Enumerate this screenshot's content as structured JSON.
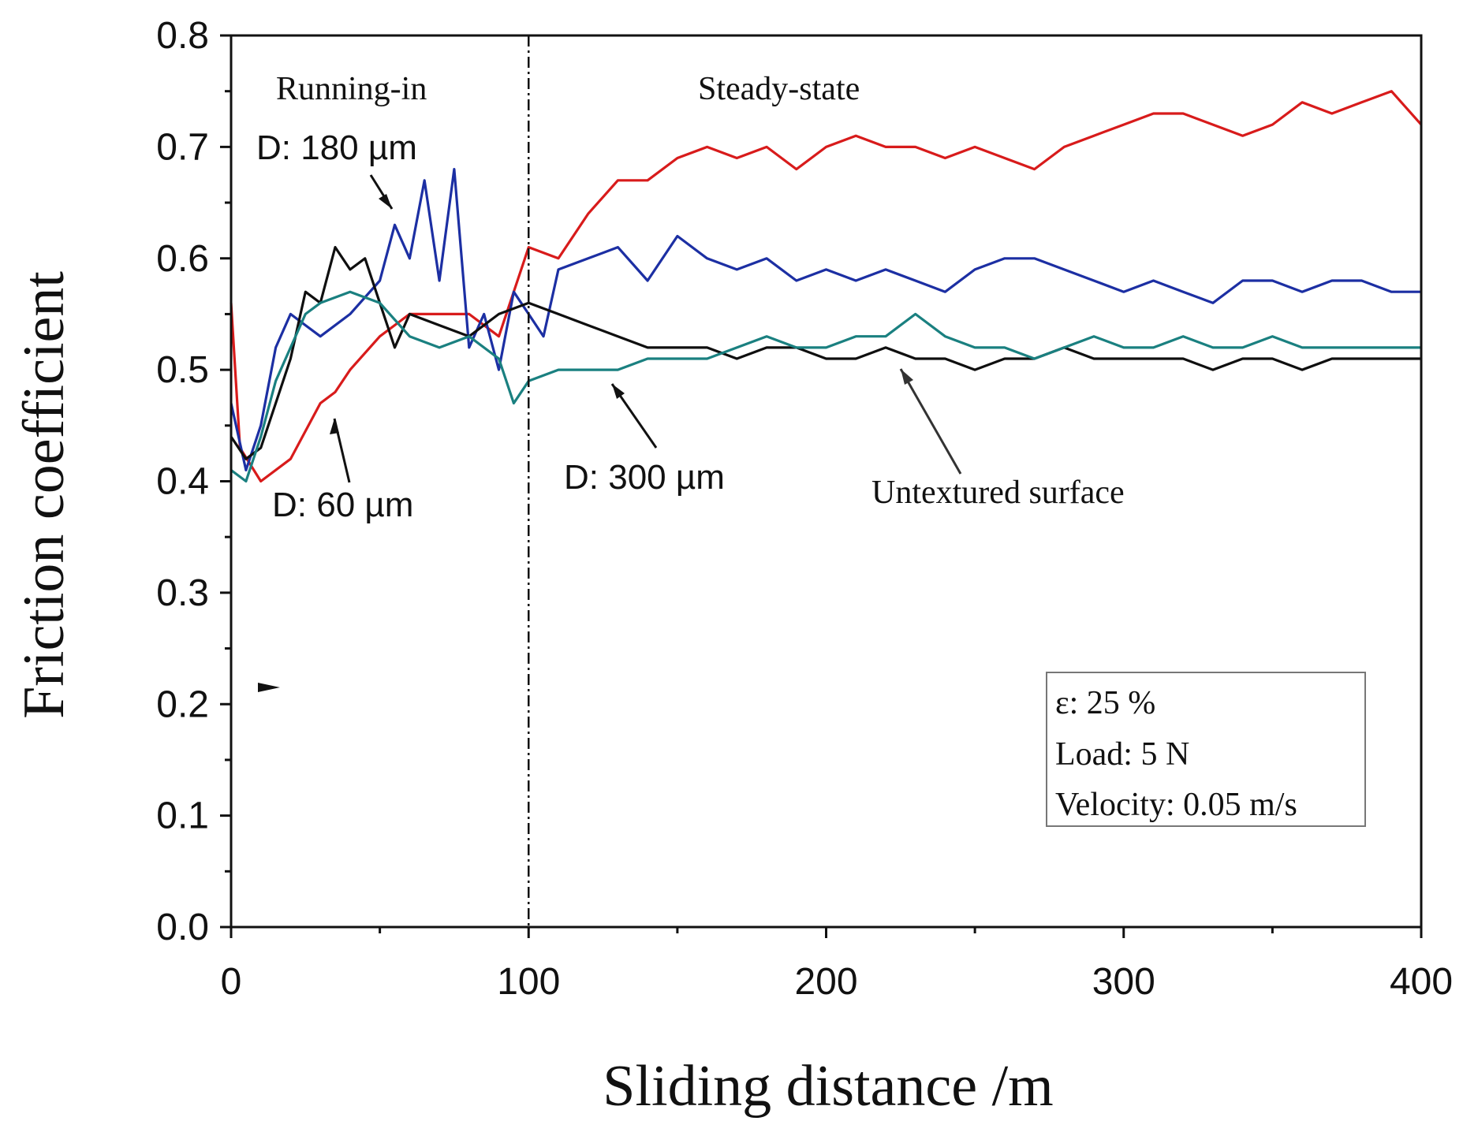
{
  "chart_data": {
    "type": "line",
    "xlabel": "Sliding distance /m",
    "ylabel": "Friction coefficient",
    "xlim": [
      0,
      400
    ],
    "ylim": [
      0,
      0.8
    ],
    "x_ticks": [
      "0",
      "100",
      "200",
      "300",
      "400"
    ],
    "y_ticks": [
      "0.0",
      "0.1",
      "0.2",
      "0.3",
      "0.4",
      "0.5",
      "0.6",
      "0.7",
      "0.8"
    ],
    "grid": false,
    "phase_divider_x": 100,
    "phase_labels": [
      "Running-in",
      "Steady-state"
    ],
    "series": [
      {
        "name": "D: 60 µm",
        "color": "#d81b1b",
        "x": [
          0,
          3,
          10,
          20,
          30,
          35,
          40,
          50,
          60,
          70,
          80,
          90,
          100,
          110,
          120,
          130,
          140,
          150,
          160,
          170,
          180,
          190,
          200,
          210,
          220,
          230,
          240,
          250,
          260,
          270,
          280,
          290,
          300,
          310,
          320,
          330,
          340,
          350,
          360,
          370,
          380,
          390,
          400
        ],
        "values": [
          0.56,
          0.43,
          0.4,
          0.42,
          0.47,
          0.48,
          0.5,
          0.53,
          0.55,
          0.55,
          0.55,
          0.53,
          0.61,
          0.6,
          0.64,
          0.67,
          0.67,
          0.69,
          0.7,
          0.69,
          0.7,
          0.68,
          0.7,
          0.71,
          0.7,
          0.7,
          0.69,
          0.7,
          0.69,
          0.68,
          0.7,
          0.71,
          0.72,
          0.73,
          0.73,
          0.72,
          0.71,
          0.72,
          0.74,
          0.73,
          0.74,
          0.75,
          0.72
        ]
      },
      {
        "name": "D: 180 µm",
        "color": "#1c2fa3",
        "x": [
          0,
          5,
          10,
          15,
          20,
          25,
          30,
          40,
          50,
          55,
          60,
          65,
          70,
          75,
          80,
          85,
          90,
          95,
          100,
          105,
          110,
          120,
          130,
          140,
          150,
          160,
          170,
          180,
          190,
          200,
          210,
          220,
          230,
          240,
          250,
          260,
          270,
          280,
          290,
          300,
          310,
          320,
          330,
          340,
          350,
          360,
          370,
          380,
          390,
          400
        ],
        "values": [
          0.47,
          0.41,
          0.45,
          0.52,
          0.55,
          0.54,
          0.53,
          0.55,
          0.58,
          0.63,
          0.6,
          0.67,
          0.58,
          0.68,
          0.52,
          0.55,
          0.5,
          0.57,
          0.55,
          0.53,
          0.59,
          0.6,
          0.61,
          0.58,
          0.62,
          0.6,
          0.59,
          0.6,
          0.58,
          0.59,
          0.58,
          0.59,
          0.58,
          0.57,
          0.59,
          0.6,
          0.6,
          0.59,
          0.58,
          0.57,
          0.58,
          0.57,
          0.56,
          0.58,
          0.58,
          0.57,
          0.58,
          0.58,
          0.57,
          0.57
        ]
      },
      {
        "name": "D: 300 µm",
        "color": "#0f0f0f",
        "x": [
          0,
          5,
          10,
          15,
          20,
          25,
          30,
          35,
          40,
          45,
          50,
          55,
          60,
          70,
          80,
          90,
          100,
          110,
          120,
          130,
          140,
          150,
          160,
          170,
          180,
          190,
          200,
          210,
          220,
          230,
          240,
          250,
          260,
          270,
          280,
          290,
          300,
          310,
          320,
          330,
          340,
          350,
          360,
          370,
          380,
          390,
          400
        ],
        "values": [
          0.44,
          0.42,
          0.43,
          0.47,
          0.51,
          0.57,
          0.56,
          0.61,
          0.59,
          0.6,
          0.56,
          0.52,
          0.55,
          0.54,
          0.53,
          0.55,
          0.56,
          0.55,
          0.54,
          0.53,
          0.52,
          0.52,
          0.52,
          0.51,
          0.52,
          0.52,
          0.51,
          0.51,
          0.52,
          0.51,
          0.51,
          0.5,
          0.51,
          0.51,
          0.52,
          0.51,
          0.51,
          0.51,
          0.51,
          0.5,
          0.51,
          0.51,
          0.5,
          0.51,
          0.51,
          0.51,
          0.51
        ]
      },
      {
        "name": "Untextured surface",
        "color": "#1a8080",
        "x": [
          0,
          5,
          10,
          15,
          20,
          25,
          30,
          40,
          50,
          60,
          70,
          80,
          90,
          95,
          100,
          110,
          120,
          130,
          140,
          150,
          160,
          170,
          180,
          190,
          200,
          210,
          220,
          230,
          240,
          250,
          260,
          270,
          280,
          290,
          300,
          310,
          320,
          330,
          340,
          350,
          360,
          370,
          380,
          390,
          400
        ],
        "values": [
          0.41,
          0.4,
          0.44,
          0.49,
          0.52,
          0.55,
          0.56,
          0.57,
          0.56,
          0.53,
          0.52,
          0.53,
          0.51,
          0.47,
          0.49,
          0.5,
          0.5,
          0.5,
          0.51,
          0.51,
          0.51,
          0.52,
          0.53,
          0.52,
          0.52,
          0.53,
          0.53,
          0.55,
          0.53,
          0.52,
          0.52,
          0.51,
          0.52,
          0.53,
          0.52,
          0.52,
          0.53,
          0.52,
          0.52,
          0.53,
          0.52,
          0.52,
          0.52,
          0.52,
          0.52
        ]
      }
    ],
    "annotations": {
      "running_in": "Running-in",
      "steady_state": "Steady-state",
      "d180": "D: 180 µm",
      "d60": "D: 60 µm",
      "d300": "D: 300 µm",
      "untextured": "Untextured surface"
    },
    "info_box": {
      "line1": "ε: 25 %",
      "line2": "Load: 5 N",
      "line3": "Velocity: 0.05 m/s"
    }
  }
}
